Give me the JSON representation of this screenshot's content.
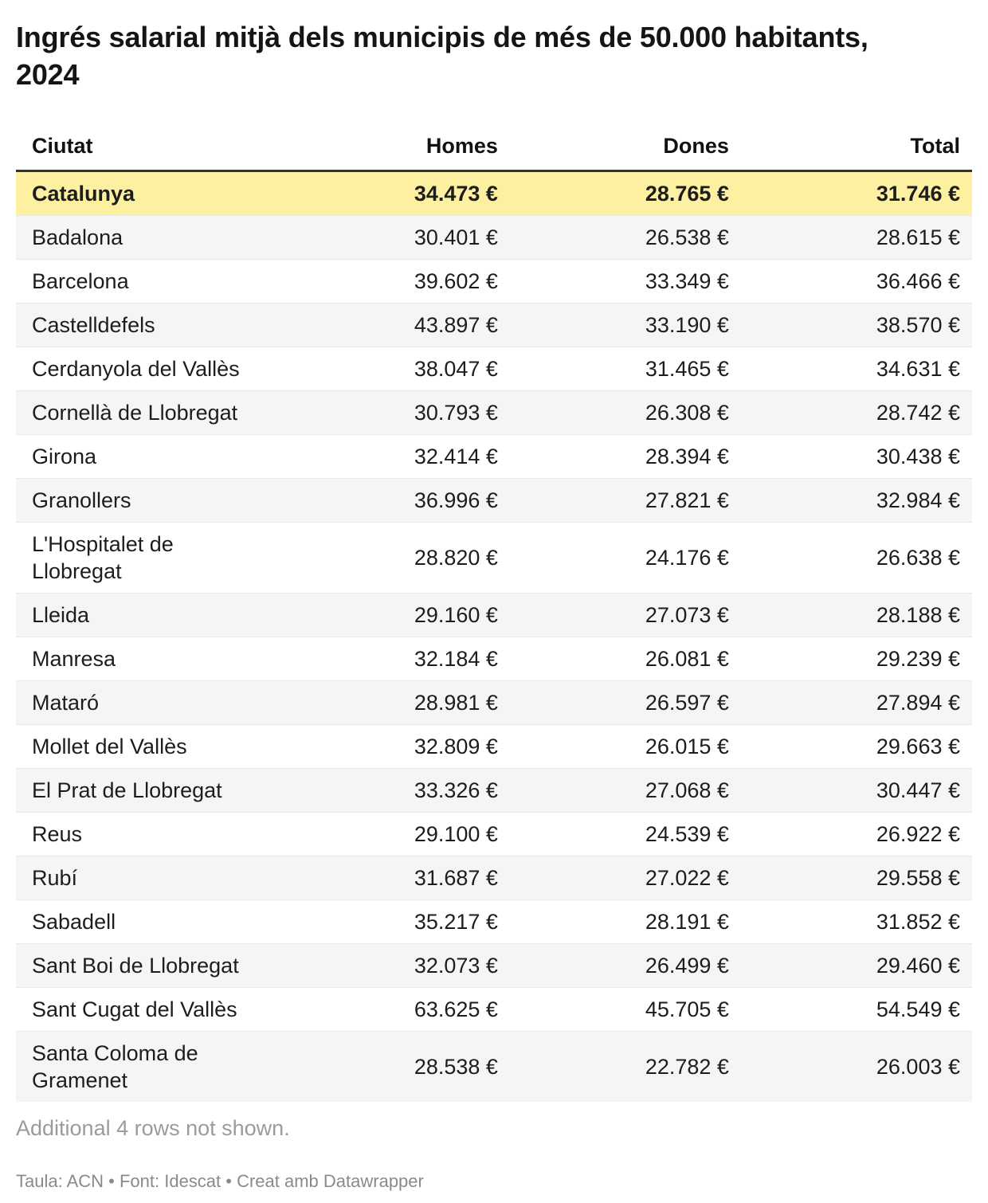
{
  "title": "Ingrés salarial mitjà dels municipis de més de 50.000 habitants, 2024",
  "table": {
    "columns": [
      "Ciutat",
      "Homes",
      "Dones",
      "Total"
    ],
    "rows": [
      {
        "city": "Catalunya",
        "homes": "34.473 €",
        "dones": "28.765 €",
        "total": "31.746 €",
        "highlight": true
      },
      {
        "city": "Badalona",
        "homes": "30.401 €",
        "dones": "26.538 €",
        "total": "28.615 €",
        "highlight": false
      },
      {
        "city": "Barcelona",
        "homes": "39.602 €",
        "dones": "33.349 €",
        "total": "36.466 €",
        "highlight": false
      },
      {
        "city": "Castelldefels",
        "homes": "43.897 €",
        "dones": "33.190 €",
        "total": "38.570 €",
        "highlight": false
      },
      {
        "city": "Cerdanyola del Vallès",
        "homes": "38.047 €",
        "dones": "31.465 €",
        "total": "34.631 €",
        "highlight": false
      },
      {
        "city": "Cornellà de Llobregat",
        "homes": "30.793 €",
        "dones": "26.308 €",
        "total": "28.742 €",
        "highlight": false
      },
      {
        "city": "Girona",
        "homes": "32.414 €",
        "dones": "28.394 €",
        "total": "30.438 €",
        "highlight": false
      },
      {
        "city": "Granollers",
        "homes": "36.996 €",
        "dones": "27.821 €",
        "total": "32.984 €",
        "highlight": false
      },
      {
        "city": "L'Hospitalet de\nLlobregat",
        "homes": "28.820 €",
        "dones": "24.176 €",
        "total": "26.638 €",
        "highlight": false
      },
      {
        "city": "Lleida",
        "homes": "29.160 €",
        "dones": "27.073 €",
        "total": "28.188 €",
        "highlight": false
      },
      {
        "city": "Manresa",
        "homes": "32.184 €",
        "dones": "26.081 €",
        "total": "29.239 €",
        "highlight": false
      },
      {
        "city": "Mataró",
        "homes": "28.981 €",
        "dones": "26.597 €",
        "total": "27.894 €",
        "highlight": false
      },
      {
        "city": "Mollet del Vallès",
        "homes": "32.809 €",
        "dones": "26.015 €",
        "total": "29.663 €",
        "highlight": false
      },
      {
        "city": "El Prat de Llobregat",
        "homes": "33.326 €",
        "dones": "27.068 €",
        "total": "30.447 €",
        "highlight": false
      },
      {
        "city": "Reus",
        "homes": "29.100 €",
        "dones": "24.539 €",
        "total": "26.922 €",
        "highlight": false
      },
      {
        "city": "Rubí",
        "homes": "31.687 €",
        "dones": "27.022 €",
        "total": "29.558 €",
        "highlight": false
      },
      {
        "city": "Sabadell",
        "homes": "35.217 €",
        "dones": "28.191 €",
        "total": "31.852 €",
        "highlight": false
      },
      {
        "city": "Sant Boi de Llobregat",
        "homes": "32.073 €",
        "dones": "26.499 €",
        "total": "29.460 €",
        "highlight": false
      },
      {
        "city": "Sant Cugat del Vallès",
        "homes": "63.625 €",
        "dones": "45.705 €",
        "total": "54.549 €",
        "highlight": false
      },
      {
        "city": "Santa Coloma de\nGramenet",
        "homes": "28.538 €",
        "dones": "22.782 €",
        "total": "26.003 €",
        "highlight": false
      }
    ]
  },
  "notes": {
    "additional_rows": "Additional 4 rows not shown."
  },
  "footer": {
    "attribution": "Taula: ACN • Font: Idescat • Creat amb Datawrapper"
  },
  "colors": {
    "highlight_row": "#fdf0a1",
    "stripe_row": "#f5f5f5",
    "header_border": "#333333"
  },
  "chart_data": {
    "type": "table",
    "title": "Ingrés salarial mitjà dels municipis de més de 50.000 habitants, 2024",
    "categories": [
      "Catalunya",
      "Badalona",
      "Barcelona",
      "Castelldefels",
      "Cerdanyola del Vallès",
      "Cornellà de Llobregat",
      "Girona",
      "Granollers",
      "L'Hospitalet de Llobregat",
      "Lleida",
      "Manresa",
      "Mataró",
      "Mollet del Vallès",
      "El Prat de Llobregat",
      "Reus",
      "Rubí",
      "Sabadell",
      "Sant Boi de Llobregat",
      "Sant Cugat del Vallès",
      "Santa Coloma de Gramenet"
    ],
    "series": [
      {
        "name": "Homes",
        "unit": "€",
        "values": [
          34473,
          30401,
          39602,
          43897,
          38047,
          30793,
          32414,
          36996,
          28820,
          29160,
          32184,
          28981,
          32809,
          33326,
          29100,
          31687,
          35217,
          32073,
          63625,
          28538
        ]
      },
      {
        "name": "Dones",
        "unit": "€",
        "values": [
          28765,
          26538,
          33349,
          33190,
          31465,
          26308,
          28394,
          27821,
          24176,
          27073,
          26081,
          26597,
          26015,
          27068,
          24539,
          27022,
          28191,
          26499,
          45705,
          22782
        ]
      },
      {
        "name": "Total",
        "unit": "€",
        "values": [
          31746,
          28615,
          36466,
          38570,
          34631,
          28742,
          30438,
          32984,
          26638,
          28188,
          29239,
          27894,
          29663,
          30447,
          26922,
          29558,
          31852,
          29460,
          54549,
          26003
        ]
      }
    ],
    "highlighted_row": "Catalunya",
    "note": "Additional 4 rows not shown."
  }
}
